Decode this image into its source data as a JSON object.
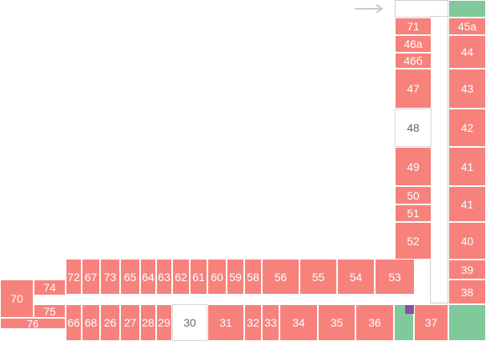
{
  "colors": {
    "occupied": "#f7827c",
    "free": "#ffffff",
    "green": "#7fc99a",
    "marker": "#8b4ea0",
    "arrow": "#b9b9b9"
  },
  "icons": {
    "entrance": "arrow-right-icon"
  },
  "units": {
    "u71": "71",
    "u46a": "46а",
    "u466": "46б",
    "u47": "47",
    "u48": "48",
    "u49": "49",
    "u50": "50",
    "u51": "51",
    "u52": "52",
    "u45a": "45а",
    "u44": "44",
    "u43": "43",
    "u42": "42",
    "u41a": "41",
    "u41b": "41",
    "u40": "40",
    "u39": "39",
    "u38": "38",
    "u37": "37",
    "u72": "72",
    "u67": "67",
    "u73": "73",
    "u65": "65",
    "u64": "64",
    "u63": "63",
    "u62": "62",
    "u61": "61",
    "u60": "60",
    "u59": "59",
    "u58": "58",
    "u56": "56",
    "u55": "55",
    "u54": "54",
    "u53": "53",
    "u70": "70",
    "u74": "74",
    "u75": "75",
    "u76": "76",
    "u66": "66",
    "u68": "68",
    "u26": "26",
    "u27": "27",
    "u28": "28",
    "u29": "29",
    "u30": "30",
    "u31": "31",
    "u32": "32",
    "u33": "33",
    "u34": "34",
    "u35": "35",
    "u36": "36"
  }
}
